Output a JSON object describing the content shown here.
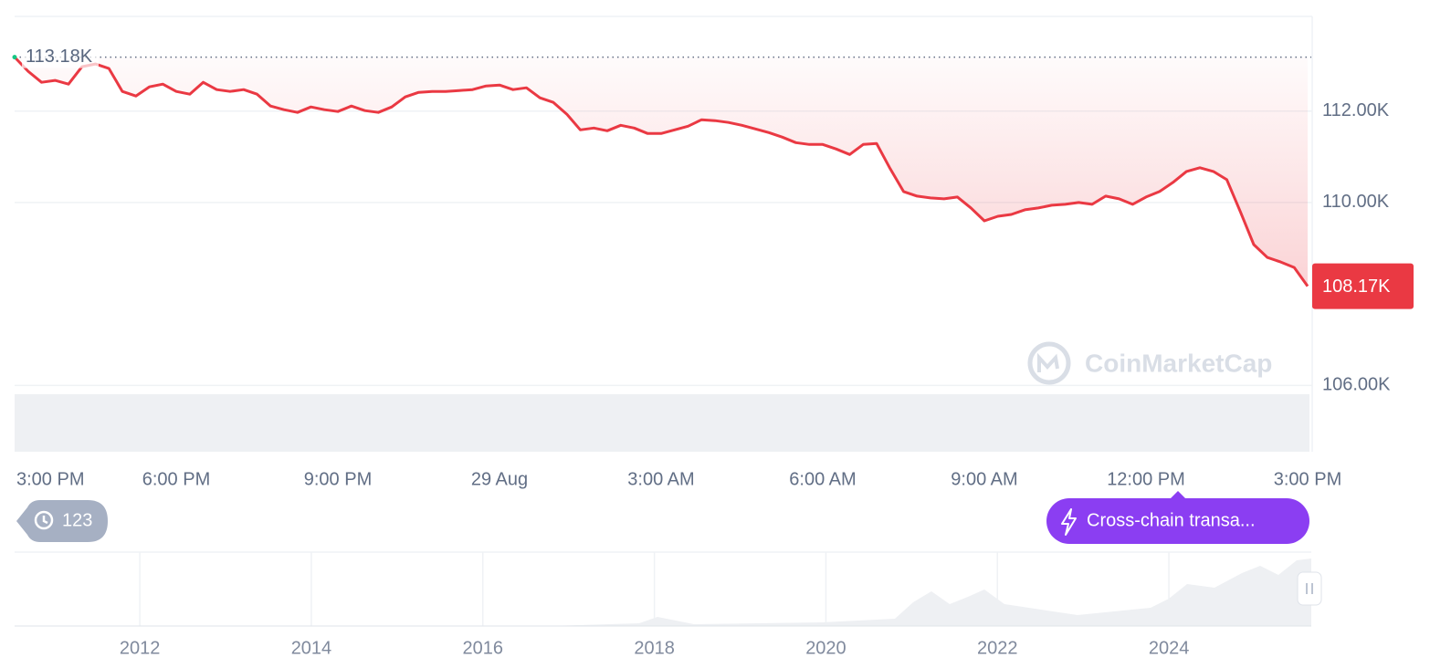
{
  "chart_data": {
    "type": "line",
    "categories": [
      "3:00 PM",
      null,
      null,
      null,
      null,
      null,
      null,
      null,
      null,
      null,
      null,
      null,
      "6:00 PM",
      null,
      null,
      null,
      null,
      null,
      null,
      null,
      null,
      null,
      null,
      null,
      "9:00 PM",
      null,
      null,
      null,
      null,
      null,
      null,
      null,
      null,
      null,
      null,
      null,
      "29 Aug",
      null,
      null,
      null,
      null,
      null,
      null,
      null,
      null,
      null,
      null,
      null,
      "3:00 AM",
      null,
      null,
      null,
      null,
      null,
      null,
      null,
      null,
      null,
      null,
      null,
      "6:00 AM",
      null,
      null,
      null,
      null,
      null,
      null,
      null,
      null,
      null,
      null,
      null,
      "9:00 AM",
      null,
      null,
      null,
      null,
      null,
      null,
      null,
      null,
      null,
      null,
      null,
      "12:00 PM",
      null,
      null,
      null,
      null,
      null,
      null,
      null,
      null,
      null,
      null,
      null,
      "3:00 PM"
    ],
    "values": [
      113180,
      112870,
      112630,
      112670,
      112590,
      112970,
      113030,
      112930,
      112430,
      112330,
      112530,
      112590,
      112430,
      112370,
      112630,
      112470,
      112430,
      112470,
      112370,
      112110,
      112030,
      111970,
      112090,
      112030,
      111990,
      112110,
      112010,
      111970,
      112090,
      112310,
      112410,
      112430,
      112430,
      112450,
      112470,
      112550,
      112570,
      112470,
      112510,
      112290,
      112190,
      111930,
      111590,
      111630,
      111570,
      111690,
      111630,
      111510,
      111510,
      111590,
      111670,
      111810,
      111790,
      111750,
      111690,
      111610,
      111530,
      111430,
      111310,
      111270,
      111270,
      111170,
      111050,
      111270,
      111290,
      110740,
      110240,
      110140,
      110100,
      110080,
      110120,
      109880,
      109600,
      109700,
      109740,
      109840,
      109880,
      109940,
      109960,
      110000,
      109960,
      110140,
      110080,
      109960,
      110120,
      110240,
      110440,
      110680,
      110760,
      110680,
      110500,
      109800,
      109080,
      108800,
      108700,
      108580,
      108170
    ],
    "color": "#ea3943",
    "ylim": [
      104550,
      114070
    ],
    "yticks": [
      {
        "value": 106000,
        "label": "106.00K"
      },
      {
        "value": 110000,
        "label": "110.00K"
      },
      {
        "value": 112000,
        "label": "112.00K"
      }
    ],
    "grid": true,
    "reference_line": {
      "value": 113180,
      "label": "113.18K"
    },
    "price_label": {
      "value": 108170,
      "label": "108.17K",
      "color": "#ea3943"
    },
    "watermark": "CoinMarketCap"
  },
  "navigator": {
    "xlim": [
      2010.54,
      2025.66
    ],
    "xticks": [
      2012,
      2014,
      2016,
      2018,
      2020,
      2022,
      2024
    ]
  },
  "history_badge": 123,
  "event_label": "Cross-chain transa..."
}
